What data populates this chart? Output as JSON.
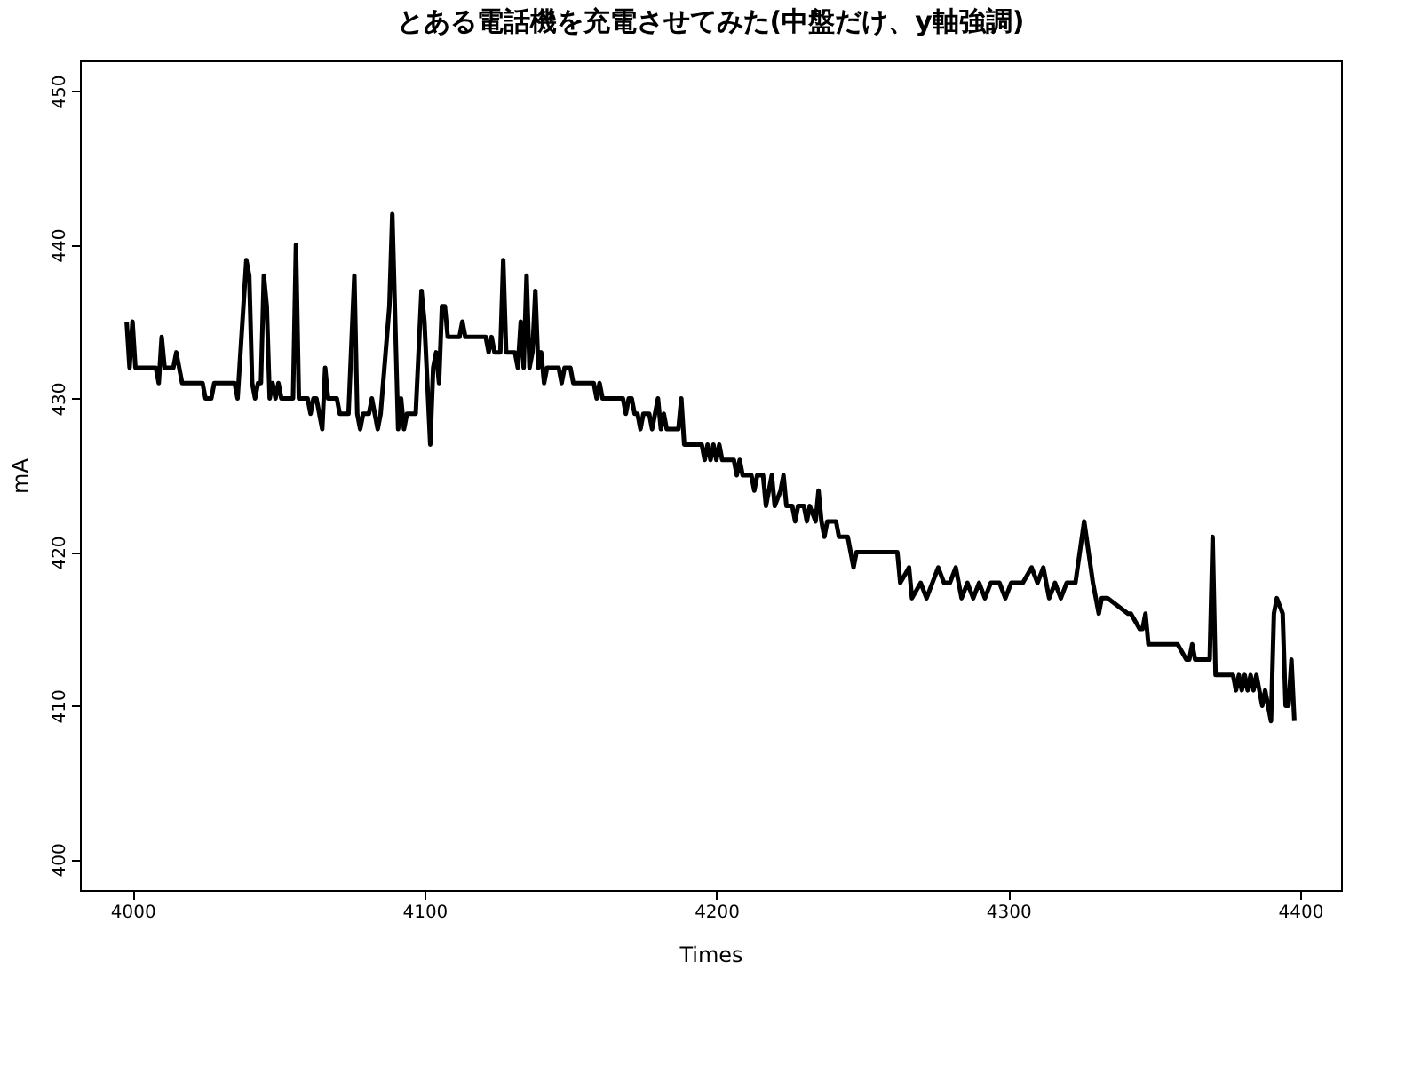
{
  "chart_data": {
    "type": "line",
    "title": "とある電話機を充電させてみた(中盤だけ、y軸強調)",
    "xlabel": "Times",
    "ylabel": "mA",
    "x": [
      3998,
      3999,
      4000,
      4001,
      4008,
      4009,
      4010,
      4011,
      4014,
      4015,
      4017,
      4024,
      4025,
      4027,
      4028,
      4035,
      4036,
      4038,
      4039,
      4040,
      4041,
      4042,
      4043,
      4044,
      4045,
      4046,
      4047,
      4048,
      4049,
      4050,
      4051,
      4055,
      4056,
      4057,
      4060,
      4061,
      4062,
      4063,
      4064,
      4065,
      4066,
      4067,
      4070,
      4071,
      4074,
      4076,
      4077,
      4078,
      4079,
      4081,
      4082,
      4083,
      4084,
      4085,
      4088,
      4089,
      4090,
      4091,
      4092,
      4093,
      4094,
      4097,
      4099,
      4100,
      4102,
      4103,
      4104,
      4105,
      4106,
      4107,
      4108,
      4112,
      4113,
      4114,
      4121,
      4122,
      4123,
      4124,
      4126,
      4127,
      4128,
      4131,
      4132,
      4133,
      4134,
      4135,
      4136,
      4137,
      4138,
      4139,
      4140,
      4141,
      4142,
      4146,
      4147,
      4148,
      4150,
      4151,
      4158,
      4159,
      4160,
      4161,
      4168,
      4169,
      4170,
      4171,
      4172,
      4173,
      4174,
      4175,
      4177,
      4178,
      4179,
      4180,
      4181,
      4182,
      4183,
      4187,
      4188,
      4189,
      4195,
      4196,
      4197,
      4198,
      4199,
      4200,
      4201,
      4202,
      4206,
      4207,
      4208,
      4209,
      4212,
      4213,
      4214,
      4216,
      4217,
      4218,
      4219,
      4220,
      4222,
      4223,
      4224,
      4226,
      4227,
      4228,
      4230,
      4231,
      4232,
      4234,
      4235,
      4236,
      4237,
      4238,
      4241,
      4242,
      4245,
      4246,
      4247,
      4248,
      4253,
      4262,
      4263,
      4266,
      4267,
      4270,
      4272,
      4274,
      4276,
      4278,
      4280,
      4282,
      4284,
      4286,
      4288,
      4290,
      4292,
      4294,
      4297,
      4299,
      4301,
      4303,
      4305,
      4308,
      4310,
      4312,
      4314,
      4316,
      4318,
      4320,
      4323,
      4326,
      4329,
      4330,
      4331,
      4332,
      4334,
      4341,
      4342,
      4345,
      4346,
      4347,
      4348,
      4357,
      4358,
      4361,
      4362,
      4363,
      4364,
      4369,
      4370,
      4371,
      4376,
      4377,
      4378,
      4379,
      4380,
      4381,
      4382,
      4383,
      4384,
      4385,
      4386,
      4387,
      4388,
      4389,
      4390,
      4391,
      4392,
      4394,
      4395,
      4396,
      4397,
      4398
    ],
    "values": [
      435,
      432,
      435,
      432,
      432,
      431,
      434,
      432,
      432,
      433,
      431,
      431,
      430,
      430,
      431,
      431,
      430,
      436,
      439,
      438,
      431,
      430,
      431,
      431,
      438,
      436,
      430,
      431,
      430,
      431,
      430,
      430,
      440,
      430,
      430,
      429,
      430,
      430,
      429,
      428,
      432,
      430,
      430,
      429,
      429,
      438,
      429,
      428,
      429,
      429,
      430,
      429,
      428,
      429,
      436,
      442,
      435,
      428,
      430,
      428,
      429,
      429,
      437,
      435,
      427,
      432,
      433,
      431,
      436,
      436,
      434,
      434,
      435,
      434,
      434,
      433,
      434,
      433,
      433,
      439,
      433,
      433,
      432,
      435,
      432,
      438,
      432,
      433,
      437,
      432,
      433,
      431,
      432,
      432,
      431,
      432,
      432,
      431,
      431,
      430,
      431,
      430,
      430,
      429,
      430,
      430,
      429,
      429,
      428,
      429,
      429,
      428,
      429,
      430,
      428,
      429,
      428,
      428,
      430,
      427,
      427,
      426,
      427,
      426,
      427,
      426,
      427,
      426,
      426,
      425,
      426,
      425,
      425,
      424,
      425,
      425,
      423,
      424,
      425,
      423,
      424,
      425,
      423,
      423,
      422,
      423,
      423,
      422,
      423,
      422,
      424,
      422,
      421,
      422,
      422,
      421,
      421,
      420,
      419,
      420,
      420,
      420,
      418,
      419,
      417,
      418,
      417,
      418,
      419,
      418,
      418,
      419,
      417,
      418,
      417,
      418,
      417,
      418,
      418,
      417,
      418,
      418,
      418,
      419,
      418,
      419,
      417,
      418,
      417,
      418,
      418,
      422,
      418,
      417,
      416,
      417,
      417,
      416,
      416,
      415,
      415,
      416,
      414,
      414,
      414,
      413,
      413,
      414,
      413,
      413,
      421,
      412,
      412,
      412,
      411,
      412,
      411,
      412,
      411,
      412,
      411,
      412,
      411,
      410,
      411,
      410,
      409,
      416,
      417,
      416,
      410,
      410,
      413,
      409
    ],
    "color": "#000000",
    "xlim": [
      3982,
      4414
    ],
    "ylim": [
      398,
      452
    ],
    "xticks": [
      4000,
      4100,
      4200,
      4300,
      4400
    ],
    "yticks": [
      400,
      410,
      420,
      430,
      440,
      450
    ],
    "grid": false
  }
}
